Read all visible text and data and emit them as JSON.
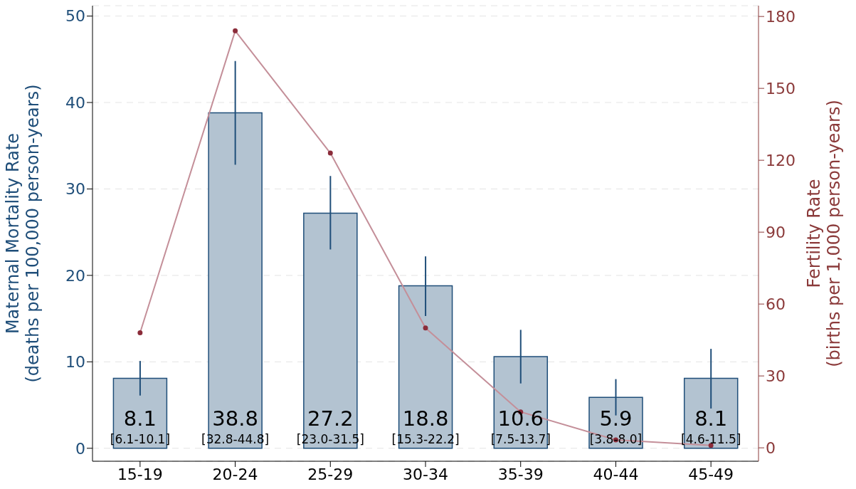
{
  "chart_data": {
    "type": "bar",
    "ylabel": "Maternal Mortality Rate (deaths per 100,000 person-years)",
    "y2label": "Fertility Rate (births per 1,000 person-years)",
    "categories": [
      "15-19",
      "20-24",
      "25-29",
      "30-34",
      "35-39",
      "40-44",
      "45-49"
    ],
    "series": [
      {
        "color": "#b3c3d1",
        "values": [
          8.1,
          38.8,
          27.2,
          18.8,
          10.6,
          5.9,
          8.1
        ],
        "value_labels": [
          "8.1",
          "38.8",
          "27.2",
          "18.8",
          "10.6",
          "5.9",
          "8.1"
        ],
        "errors": [
          [
            6.1,
            10.1
          ],
          [
            32.8,
            44.8
          ],
          [
            23.0,
            31.5
          ],
          [
            15.3,
            22.2
          ],
          [
            7.5,
            13.7
          ],
          [
            3.8,
            8.0
          ],
          [
            4.6,
            11.5
          ]
        ]
      },
      {
        "type": "line",
        "axis": "y2",
        "color": "#c48f99",
        "values": [
          48,
          174,
          123,
          50,
          15,
          3.3,
          1
        ]
      }
    ],
    "annotations": [
      "[6.1-10.1]",
      "[32.8-44.8]",
      "[23.0-31.5]",
      "[15.3-22.2]",
      "[7.5-13.7]",
      "[3.8-8.0]",
      "[4.6-11.5]"
    ],
    "ylim": [
      -1.5,
      51.2
    ],
    "yticks": [
      0,
      10,
      20,
      30,
      40,
      50
    ],
    "y2lim": [
      -5.6,
      184.5
    ],
    "y2ticks": [
      0,
      30,
      60,
      90,
      120,
      150,
      180
    ],
    "grid": "y",
    "marker": "circle",
    "line_style": "solid"
  }
}
